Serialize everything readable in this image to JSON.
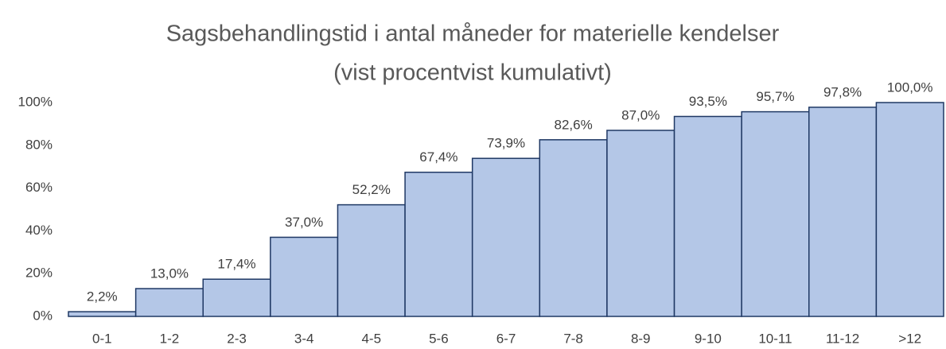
{
  "chart_data": {
    "type": "bar",
    "title": "Sagsbehandlingstid i antal måneder for materielle kendelser",
    "subtitle": "(vist procentvist kumulativt)",
    "categories": [
      "0-1",
      "1-2",
      "2-3",
      "3-4",
      "4-5",
      "5-6",
      "6-7",
      "7-8",
      "8-9",
      "9-10",
      "10-11",
      "11-12",
      ">12"
    ],
    "values": [
      2.2,
      13.0,
      17.4,
      37.0,
      52.2,
      67.4,
      73.9,
      82.6,
      87.0,
      93.5,
      95.7,
      97.8,
      100.0
    ],
    "value_labels": [
      "2,2%",
      "13,0%",
      "17,4%",
      "37,0%",
      "52,2%",
      "67,4%",
      "73,9%",
      "82,6%",
      "87,0%",
      "93,5%",
      "95,7%",
      "97,8%",
      "100,0%"
    ],
    "color": "#b4c7e7",
    "ylim": [
      0,
      100
    ],
    "yticks": [
      {
        "value": 0,
        "label": "0%"
      },
      {
        "value": 20,
        "label": "20%"
      },
      {
        "value": 40,
        "label": "40%"
      },
      {
        "value": 60,
        "label": "60%"
      },
      {
        "value": 80,
        "label": "80%"
      },
      {
        "value": 100,
        "label": "100%"
      }
    ],
    "grid": false
  }
}
